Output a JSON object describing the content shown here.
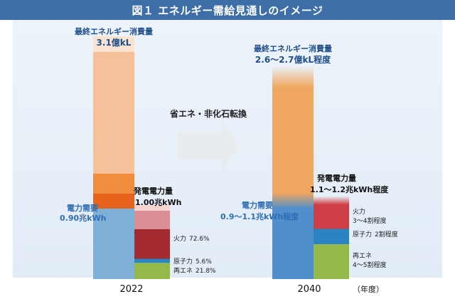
{
  "title": "図１ エネルギー需給見通しのイメージ",
  "colors": {
    "title_bg": "#3e6ea8",
    "heading_blue": "#1e4e8c",
    "power_blue_text": "#2f6db5",
    "energy_light": "#f6c19a",
    "energy_top": "#fbe3d2",
    "energy_mid": "#f08c3c",
    "energy_dark": "#e7621a",
    "power_demand_blue": "#7fb0d8",
    "fire_2022_light": "#dc8e94",
    "fire_2022_dark": "#a32b2d",
    "fire_2040": "#cf3e44",
    "nuclear": "#2a84c4",
    "renewable": "#94b948",
    "energy_2040": "#f0a760",
    "demand_2040": "#4f8fcc"
  },
  "center_label": "省エネ・非化石転換",
  "chart_data": {
    "type": "bar",
    "categories": [
      "2022",
      "2040"
    ],
    "x_unit_label": "（年度）",
    "energy_consumption": {
      "label": "最終エネルギー消費量",
      "values_text": [
        "3.1億kL",
        "2.6～2.7億kL程度"
      ],
      "values": [
        3.1,
        [
          2.6,
          2.7
        ]
      ],
      "unit": "億kL"
    },
    "power_demand": {
      "label": "電力需要",
      "values_text": [
        "0.90兆kWh",
        "0.9～1.1兆kWh程度"
      ],
      "values": [
        0.9,
        [
          0.9,
          1.1
        ]
      ],
      "unit": "兆kWh"
    },
    "power_generation": {
      "label": "発電電力量",
      "values_text": [
        "1.00兆kWh",
        "1.1～1.2兆kWh程度"
      ],
      "values": [
        1.0,
        [
          1.1,
          1.2
        ]
      ],
      "unit": "兆kWh"
    },
    "generation_mix": [
      {
        "year": "2022",
        "series": [
          {
            "name": "火力",
            "value_text": "72.6%",
            "value": 72.6
          },
          {
            "name": "原子力",
            "value_text": "5.6%",
            "value": 5.6
          },
          {
            "name": "再エネ",
            "value_text": "21.8%",
            "value": 21.8
          }
        ]
      },
      {
        "year": "2040",
        "series": [
          {
            "name": "火力",
            "value_text": "3～4割程度",
            "value": [
              30,
              40
            ]
          },
          {
            "name": "原子力",
            "value_text": "2割程度",
            "value": 20
          },
          {
            "name": "再エネ",
            "value_text": "4～5割程度",
            "value": [
              40,
              50
            ]
          }
        ]
      }
    ]
  }
}
